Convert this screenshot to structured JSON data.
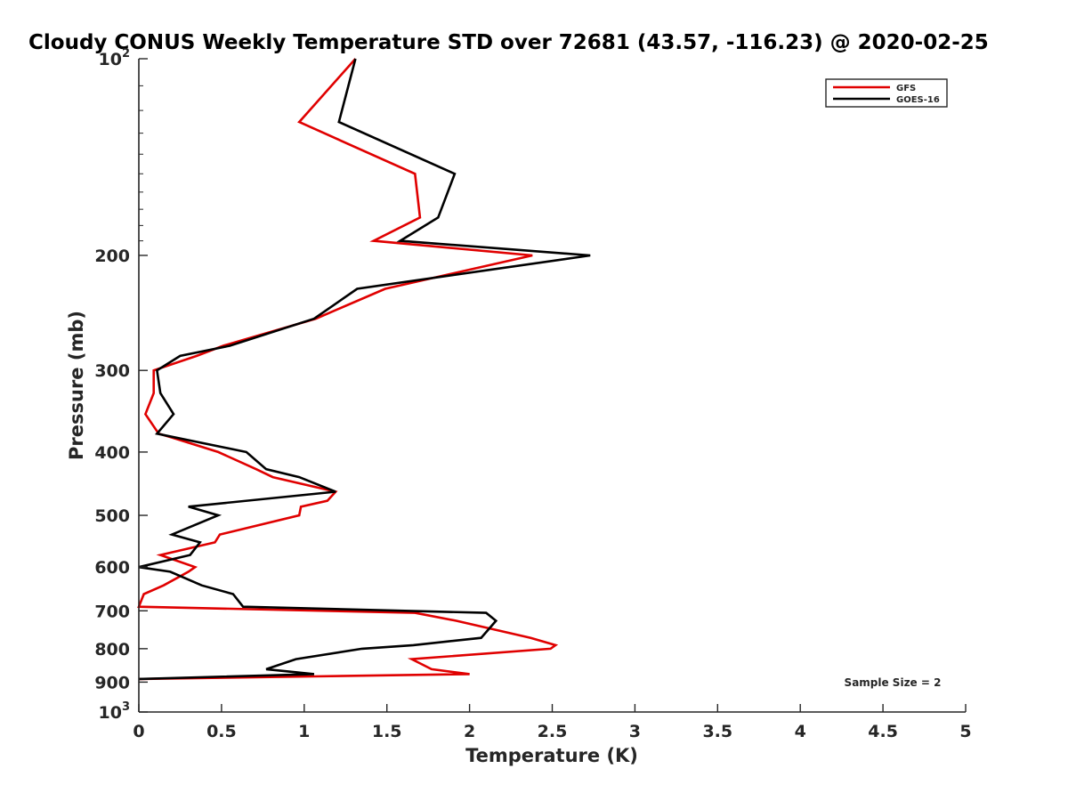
{
  "chart_data": {
    "type": "line",
    "title": "Cloudy CONUS Weekly Temperature STD over 72681 (43.57, -116.23) @ 2020-02-25",
    "xlabel": "Temperature (K)",
    "ylabel": "Pressure (mb)",
    "xlim": [
      0,
      5
    ],
    "ylim": [
      100,
      1000
    ],
    "y_scale": "log",
    "y_reversed": true,
    "x_ticks": [
      "0",
      "0.5",
      "1",
      "1.5",
      "2",
      "2.5",
      "3",
      "3.5",
      "4",
      "4.5",
      "5"
    ],
    "y_ticks": [
      {
        "value": 100,
        "base": "10",
        "exp": "2"
      },
      {
        "value": 200,
        "label": "200"
      },
      {
        "value": 300,
        "label": "300"
      },
      {
        "value": 400,
        "label": "400"
      },
      {
        "value": 500,
        "label": "500"
      },
      {
        "value": 600,
        "label": "600"
      },
      {
        "value": 700,
        "label": "700"
      },
      {
        "value": 800,
        "label": "800"
      },
      {
        "value": 900,
        "label": "900"
      },
      {
        "value": 1000,
        "base": "10",
        "exp": "3"
      }
    ],
    "grid": false,
    "legend_position": "top-right",
    "annotation": "Sample Size = 2",
    "series": [
      {
        "name": "GFS",
        "color": "#e00000",
        "points": [
          [
            1.31,
            100
          ],
          [
            0.97,
            125
          ],
          [
            1.67,
            150
          ],
          [
            1.7,
            175
          ],
          [
            1.42,
            190
          ],
          [
            2.38,
            200
          ],
          [
            1.49,
            225
          ],
          [
            1.07,
            250
          ],
          [
            0.51,
            275
          ],
          [
            0.35,
            285
          ],
          [
            0.09,
            300
          ],
          [
            0.09,
            325
          ],
          [
            0.04,
            350
          ],
          [
            0.12,
            375
          ],
          [
            0.2,
            380
          ],
          [
            0.48,
            400
          ],
          [
            0.71,
            425
          ],
          [
            0.81,
            437
          ],
          [
            1.19,
            460
          ],
          [
            1.14,
            475
          ],
          [
            0.98,
            485
          ],
          [
            0.97,
            500
          ],
          [
            0.49,
            535
          ],
          [
            0.46,
            550
          ],
          [
            0.13,
            575
          ],
          [
            0.34,
            600
          ],
          [
            0.3,
            610
          ],
          [
            0.15,
            640
          ],
          [
            0.03,
            660
          ],
          [
            0.0,
            690
          ],
          [
            1.67,
            705
          ],
          [
            1.92,
            725
          ],
          [
            2.37,
            770
          ],
          [
            2.52,
            790
          ],
          [
            2.49,
            800
          ],
          [
            1.65,
            830
          ],
          [
            1.77,
            860
          ],
          [
            2.0,
            875
          ],
          [
            1.06,
            882
          ],
          [
            0.0,
            890
          ]
        ]
      },
      {
        "name": "GOES-16",
        "color": "#000000",
        "points": [
          [
            1.31,
            100
          ],
          [
            1.21,
            125
          ],
          [
            1.91,
            150
          ],
          [
            1.81,
            175
          ],
          [
            1.58,
            190
          ],
          [
            2.73,
            200
          ],
          [
            1.32,
            225
          ],
          [
            1.06,
            250
          ],
          [
            0.55,
            275
          ],
          [
            0.25,
            285
          ],
          [
            0.11,
            300
          ],
          [
            0.13,
            325
          ],
          [
            0.21,
            350
          ],
          [
            0.11,
            375
          ],
          [
            0.65,
            400
          ],
          [
            0.77,
            425
          ],
          [
            0.97,
            437
          ],
          [
            1.19,
            460
          ],
          [
            0.3,
            485
          ],
          [
            0.48,
            500
          ],
          [
            0.2,
            535
          ],
          [
            0.37,
            550
          ],
          [
            0.31,
            575
          ],
          [
            0.0,
            600
          ],
          [
            0.19,
            610
          ],
          [
            0.38,
            640
          ],
          [
            0.57,
            660
          ],
          [
            0.63,
            690
          ],
          [
            2.1,
            705
          ],
          [
            2.16,
            725
          ],
          [
            2.07,
            770
          ],
          [
            1.66,
            790
          ],
          [
            1.35,
            800
          ],
          [
            0.95,
            830
          ],
          [
            0.77,
            860
          ],
          [
            1.06,
            875
          ],
          [
            0.0,
            890
          ]
        ]
      }
    ]
  }
}
